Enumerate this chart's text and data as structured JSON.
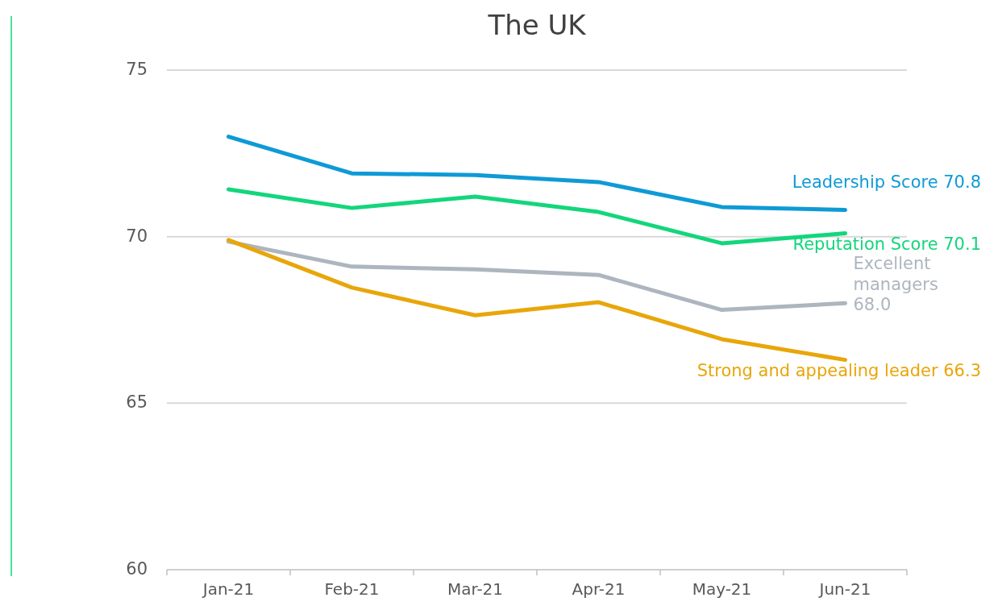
{
  "chart_data": {
    "type": "line",
    "title": "The UK",
    "categories": [
      "Jan-21",
      "Feb-21",
      "Mar-21",
      "Apr-21",
      "May-21",
      "Jun-21"
    ],
    "ylim": [
      60,
      75
    ],
    "yticks": [
      60,
      65,
      70,
      75
    ],
    "grid": "y",
    "marker": "none",
    "line_style": "solid",
    "series": [
      {
        "name": "Leadership Score",
        "color": "#0e9ad6",
        "values": [
          73.0,
          71.9,
          71.85,
          71.64,
          70.89,
          70.8
        ],
        "value_labels": [
          null,
          null,
          null,
          null,
          null,
          "70.8"
        ]
      },
      {
        "name": "Reputation Score",
        "color": "#13d67c",
        "values": [
          71.42,
          70.86,
          71.2,
          70.74,
          69.8,
          70.1
        ],
        "value_labels": [
          null,
          null,
          null,
          null,
          null,
          "70.1"
        ]
      },
      {
        "name": "Excellent managers",
        "color": "#adb5bf",
        "values": [
          69.85,
          69.1,
          69.02,
          68.85,
          67.8,
          68.0
        ],
        "value_labels": [
          null,
          null,
          null,
          null,
          null,
          "68.0"
        ]
      },
      {
        "name": "Strong and appealing leader",
        "color": "#e8a60a",
        "values": [
          69.9,
          68.47,
          67.64,
          68.03,
          66.92,
          66.3
        ],
        "value_labels": [
          null,
          null,
          null,
          null,
          null,
          "66.3"
        ]
      }
    ]
  }
}
